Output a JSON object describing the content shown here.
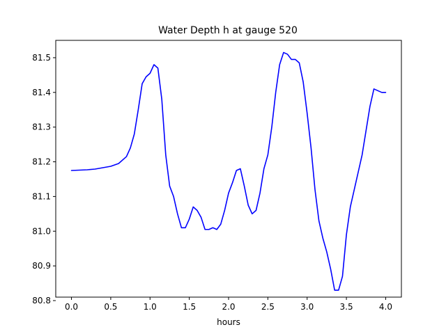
{
  "chart_data": {
    "type": "line",
    "title": "Water Depth h at gauge 520",
    "xlabel": "hours",
    "ylabel": "",
    "xlim": [
      -0.2,
      4.2
    ],
    "ylim": [
      80.81,
      81.55
    ],
    "xticks": [
      0.0,
      0.5,
      1.0,
      1.5,
      2.0,
      2.5,
      3.0,
      3.5,
      4.0
    ],
    "xtick_labels": [
      "0.0",
      "0.5",
      "1.0",
      "1.5",
      "2.0",
      "2.5",
      "3.0",
      "3.5",
      "4.0"
    ],
    "yticks": [
      80.8,
      80.9,
      81.0,
      81.1,
      81.2,
      81.3,
      81.4,
      81.5
    ],
    "ytick_labels": [
      "80.8",
      "80.9",
      "81.0",
      "81.1",
      "81.2",
      "81.3",
      "81.4",
      "81.5"
    ],
    "grid": false,
    "series": [
      {
        "color": "#0000ff",
        "x": [
          0.0,
          0.1,
          0.2,
          0.3,
          0.4,
          0.5,
          0.6,
          0.7,
          0.75,
          0.8,
          0.85,
          0.9,
          0.95,
          1.0,
          1.05,
          1.1,
          1.15,
          1.2,
          1.25,
          1.3,
          1.35,
          1.4,
          1.45,
          1.5,
          1.55,
          1.6,
          1.65,
          1.7,
          1.75,
          1.8,
          1.85,
          1.9,
          1.95,
          2.0,
          2.05,
          2.1,
          2.15,
          2.2,
          2.25,
          2.3,
          2.35,
          2.4,
          2.45,
          2.5,
          2.55,
          2.6,
          2.65,
          2.7,
          2.75,
          2.8,
          2.85,
          2.9,
          2.95,
          3.0,
          3.05,
          3.1,
          3.15,
          3.2,
          3.25,
          3.3,
          3.35,
          3.4,
          3.45,
          3.5,
          3.55,
          3.6,
          3.65,
          3.7,
          3.75,
          3.8,
          3.85,
          3.9,
          3.95,
          4.0
        ],
        "y": [
          81.175,
          81.176,
          81.177,
          81.179,
          81.183,
          81.187,
          81.195,
          81.215,
          81.24,
          81.28,
          81.35,
          81.425,
          81.445,
          81.455,
          81.48,
          81.47,
          81.38,
          81.22,
          81.13,
          81.1,
          81.05,
          81.01,
          81.01,
          81.035,
          81.07,
          81.06,
          81.04,
          81.005,
          81.005,
          81.01,
          81.005,
          81.02,
          81.06,
          81.11,
          81.14,
          81.175,
          81.18,
          81.13,
          81.075,
          81.05,
          81.06,
          81.11,
          81.18,
          81.22,
          81.3,
          81.4,
          81.48,
          81.515,
          81.51,
          81.495,
          81.495,
          81.485,
          81.43,
          81.34,
          81.24,
          81.12,
          81.03,
          80.98,
          80.94,
          80.89,
          80.83,
          80.83,
          80.87,
          80.99,
          81.07,
          81.12,
          81.17,
          81.22,
          81.29,
          81.36,
          81.41,
          81.405,
          81.4,
          81.4
        ]
      }
    ]
  }
}
